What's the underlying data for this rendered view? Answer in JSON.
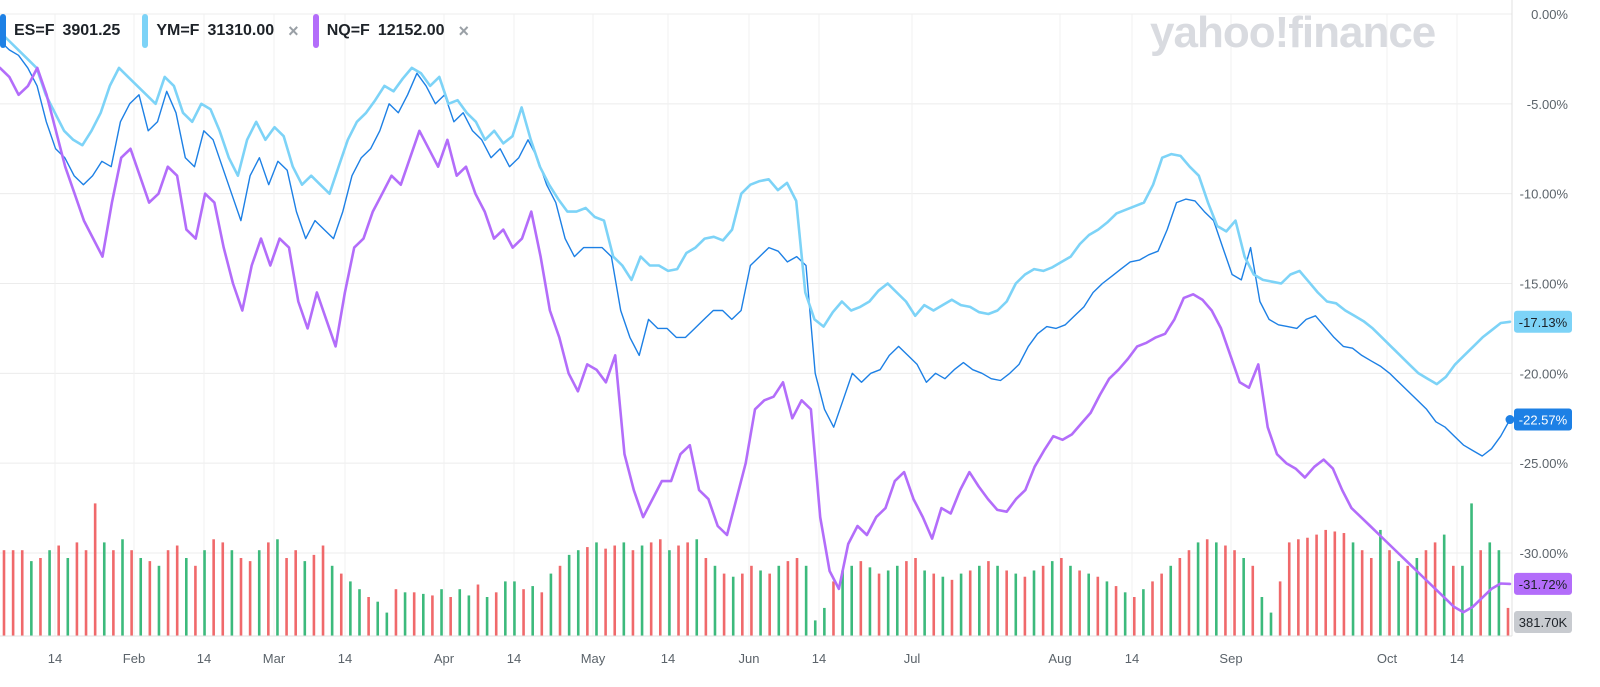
{
  "legend": [
    {
      "symbol": "ES=F",
      "price": "3901.25",
      "color": "#1d80e5",
      "removable": false
    },
    {
      "symbol": "YM=F",
      "price": "31310.00",
      "color": "#7dd3f7",
      "removable": true
    },
    {
      "symbol": "NQ=F",
      "price": "12152.00",
      "color": "#b36dfa",
      "removable": true
    }
  ],
  "remove_icon": "×",
  "watermark": "yahoo!finance",
  "chart_data": {
    "type": "line",
    "x_labels": [
      "14",
      "Feb",
      "14",
      "Mar",
      "14",
      "Apr",
      "14",
      "May",
      "14",
      "Jun",
      "14",
      "Jul",
      "Aug",
      "14",
      "Sep",
      "Oct",
      "14"
    ],
    "y_ticks": [
      "0.00%",
      "-5.00%",
      "-10.00%",
      "-15.00%",
      "-20.00%",
      "-25.00%",
      "-30.00%"
    ],
    "ylim": [
      -35,
      0
    ],
    "grid": true,
    "series": [
      {
        "name": "ES=F",
        "color": "#1d80e5",
        "last_label": "-22.57%",
        "values": [
          -1.5,
          -2,
          -2.3,
          -3,
          -4,
          -6,
          -7.5,
          -8,
          -9,
          -9.5,
          -9,
          -8.2,
          -8.5,
          -6,
          -5,
          -4.5,
          -6.5,
          -6,
          -4.3,
          -5.5,
          -8,
          -8.5,
          -6.5,
          -7,
          -8.5,
          -10,
          -11.5,
          -9,
          -8,
          -9.5,
          -8.2,
          -8.7,
          -11,
          -12.5,
          -11.5,
          -12,
          -12.5,
          -11,
          -9,
          -8,
          -7.5,
          -6.5,
          -5,
          -5.5,
          -4.5,
          -3.3,
          -4,
          -5,
          -4.5,
          -6,
          -5.5,
          -6.5,
          -7,
          -8,
          -7.5,
          -8.5,
          -8,
          -7,
          -8,
          -9.5,
          -10.5,
          -12.5,
          -13.5,
          -13,
          -13,
          -13,
          -13.5,
          -16.5,
          -18,
          -19,
          -17,
          -17.5,
          -17.5,
          -18,
          -18,
          -17.5,
          -17,
          -16.5,
          -16.5,
          -17,
          -16.5,
          -14,
          -13.5,
          -13,
          -13.2,
          -13.8,
          -13.5,
          -14,
          -20,
          -22,
          -23,
          -21.5,
          -20,
          -20.5,
          -20,
          -19.8,
          -19,
          -18.5,
          -19,
          -19.5,
          -20.5,
          -20,
          -20.3,
          -19.8,
          -19.4,
          -19.8,
          -20,
          -20.3,
          -20.4,
          -20,
          -19.5,
          -18.5,
          -17.8,
          -17.4,
          -17.5,
          -17.3,
          -16.8,
          -16.3,
          -15.5,
          -15,
          -14.6,
          -14.2,
          -13.8,
          -13.7,
          -13.4,
          -13.2,
          -12,
          -10.5,
          -10.3,
          -10.4,
          -11,
          -11.5,
          -13,
          -14.5,
          -14.8,
          -13,
          -16,
          -17,
          -17.3,
          -17.4,
          -17.5,
          -17,
          -16.8,
          -17.4,
          -18,
          -18.5,
          -18.6,
          -19,
          -19.3,
          -19.6,
          -20,
          -20.5,
          -21,
          -21.5,
          -22,
          -22.7,
          -23,
          -23.5,
          -24,
          -24.3,
          -24.6,
          -24.2,
          -23.5,
          -22.57
        ]
      },
      {
        "name": "YM=F",
        "color": "#7dd3f7",
        "last_label": "-17.13%",
        "values": [
          -1,
          -1.5,
          -2,
          -2.5,
          -3,
          -4.5,
          -5.5,
          -6.5,
          -7,
          -7.3,
          -6.5,
          -5.5,
          -4,
          -3,
          -3.5,
          -4,
          -4.5,
          -5,
          -3.5,
          -4,
          -5.5,
          -6,
          -5,
          -5.3,
          -6.5,
          -8,
          -9,
          -7,
          -6,
          -7,
          -6.3,
          -6.8,
          -8.5,
          -9.5,
          -9,
          -9.5,
          -10,
          -8.5,
          -7,
          -6,
          -5.5,
          -4.8,
          -4,
          -4.3,
          -3.6,
          -3,
          -3.3,
          -4,
          -3.5,
          -5,
          -4.8,
          -5.5,
          -6,
          -7,
          -6.5,
          -7.2,
          -6.8,
          -5.2,
          -7,
          -8.5,
          -9.5,
          -10.3,
          -11,
          -11,
          -10.8,
          -11.3,
          -11.5,
          -13.5,
          -14,
          -14.8,
          -13.5,
          -14,
          -14,
          -14.3,
          -14.2,
          -13.3,
          -13,
          -12.5,
          -12.4,
          -12.6,
          -12,
          -10,
          -9.5,
          -9.3,
          -9.2,
          -9.8,
          -9.4,
          -10.4,
          -15.5,
          -17,
          -17.4,
          -16.6,
          -16,
          -16.5,
          -16.3,
          -16,
          -15.4,
          -15,
          -15.5,
          -16,
          -16.8,
          -16.2,
          -16.5,
          -16.2,
          -15.9,
          -16.2,
          -16.3,
          -16.6,
          -16.7,
          -16.5,
          -16,
          -15,
          -14.5,
          -14.2,
          -14.3,
          -14.1,
          -13.8,
          -13.5,
          -12.8,
          -12.3,
          -12,
          -11.6,
          -11.1,
          -10.9,
          -10.7,
          -10.5,
          -9.5,
          -8,
          -7.8,
          -7.9,
          -8.5,
          -9,
          -10.5,
          -11.8,
          -12.1,
          -11.5,
          -13.5,
          -14.5,
          -14.8,
          -14.9,
          -15,
          -14.5,
          -14.3,
          -14.9,
          -15.5,
          -16,
          -16.1,
          -16.5,
          -16.8,
          -17.1,
          -17.5,
          -18,
          -18.5,
          -19,
          -19.5,
          -20,
          -20.3,
          -20.6,
          -20.2,
          -19.5,
          -19,
          -18.5,
          -18,
          -17.6,
          -17.2,
          -17.13
        ]
      },
      {
        "name": "NQ=F",
        "color": "#b36dfa",
        "last_label": "-31.72%",
        "values": [
          -3,
          -3.5,
          -4.5,
          -4,
          -3,
          -4.5,
          -6.5,
          -8.5,
          -10,
          -11.5,
          -12.5,
          -13.5,
          -10.5,
          -8,
          -7.5,
          -9,
          -10.5,
          -10,
          -8.5,
          -9,
          -12,
          -12.5,
          -10,
          -10.5,
          -13,
          -15,
          -16.5,
          -14,
          -12.5,
          -14,
          -12.5,
          -13,
          -16,
          -17.5,
          -15.5,
          -17,
          -18.5,
          -15.5,
          -13,
          -12.5,
          -11,
          -10,
          -9,
          -9.5,
          -8,
          -6.5,
          -7.5,
          -8.5,
          -7,
          -9,
          -8.5,
          -10,
          -11,
          -12.5,
          -12,
          -13,
          -12.5,
          -11,
          -13.5,
          -16.5,
          -18,
          -20,
          -21,
          -19.5,
          -19.8,
          -20.5,
          -19,
          -24.5,
          -26.5,
          -28,
          -27,
          -26,
          -26,
          -24.5,
          -24,
          -26.5,
          -27,
          -28.5,
          -29,
          -27,
          -25,
          -22,
          -21.5,
          -21.3,
          -20.5,
          -22.5,
          -21.5,
          -22,
          -28,
          -31,
          -32,
          -29.5,
          -28.5,
          -29,
          -28,
          -27.5,
          -26,
          -25.5,
          -27,
          -28,
          -29.2,
          -27.5,
          -27.8,
          -26.5,
          -25.5,
          -26.3,
          -27,
          -27.6,
          -27.7,
          -27,
          -26.5,
          -25.2,
          -24.3,
          -23.5,
          -23.7,
          -23.4,
          -22.8,
          -22.2,
          -21.2,
          -20.3,
          -19.8,
          -19.2,
          -18.5,
          -18.3,
          -18,
          -17.8,
          -17,
          -15.8,
          -15.6,
          -15.9,
          -16.5,
          -17.5,
          -19,
          -20.5,
          -20.8,
          -19.5,
          -23,
          -24.5,
          -25,
          -25.3,
          -25.8,
          -25.2,
          -24.8,
          -25.3,
          -26.5,
          -27.5,
          -28,
          -28.5,
          -29,
          -29.5,
          -30,
          -30.5,
          -31,
          -31.5,
          -32,
          -32.5,
          -33,
          -33.3,
          -33,
          -32.5,
          -32,
          -31.7,
          -31.72
        ]
      }
    ],
    "volume": {
      "last_label": "381.70K",
      "up_color": "#3cba7c",
      "down_color": "#f0696b",
      "bars": [
        [
          0.55,
          0
        ],
        [
          0.55,
          0
        ],
        [
          0.55,
          0
        ],
        [
          0.48,
          1
        ],
        [
          0.5,
          0
        ],
        [
          0.55,
          1
        ],
        [
          0.58,
          0
        ],
        [
          0.5,
          1
        ],
        [
          0.6,
          0
        ],
        [
          0.55,
          0
        ],
        [
          0.85,
          0
        ],
        [
          0.6,
          1
        ],
        [
          0.55,
          0
        ],
        [
          0.62,
          1
        ],
        [
          0.55,
          0
        ],
        [
          0.5,
          1
        ],
        [
          0.48,
          0
        ],
        [
          0.45,
          1
        ],
        [
          0.55,
          0
        ],
        [
          0.58,
          0
        ],
        [
          0.5,
          1
        ],
        [
          0.45,
          0
        ],
        [
          0.55,
          1
        ],
        [
          0.62,
          0
        ],
        [
          0.6,
          0
        ],
        [
          0.55,
          1
        ],
        [
          0.5,
          0
        ],
        [
          0.48,
          0
        ],
        [
          0.55,
          1
        ],
        [
          0.6,
          0
        ],
        [
          0.62,
          1
        ],
        [
          0.5,
          0
        ],
        [
          0.55,
          0
        ],
        [
          0.48,
          1
        ],
        [
          0.52,
          0
        ],
        [
          0.58,
          0
        ],
        [
          0.45,
          1
        ],
        [
          0.4,
          0
        ],
        [
          0.35,
          1
        ],
        [
          0.3,
          1
        ],
        [
          0.25,
          0
        ],
        [
          0.22,
          1
        ],
        [
          0.15,
          1
        ],
        [
          0.3,
          0
        ],
        [
          0.28,
          1
        ],
        [
          0.28,
          0
        ],
        [
          0.27,
          1
        ],
        [
          0.26,
          0
        ],
        [
          0.3,
          1
        ],
        [
          0.25,
          0
        ],
        [
          0.3,
          1
        ],
        [
          0.26,
          1
        ],
        [
          0.33,
          0
        ],
        [
          0.25,
          1
        ],
        [
          0.28,
          0
        ],
        [
          0.35,
          1
        ],
        [
          0.35,
          1
        ],
        [
          0.3,
          0
        ],
        [
          0.32,
          1
        ],
        [
          0.28,
          0
        ],
        [
          0.4,
          1
        ],
        [
          0.45,
          0
        ],
        [
          0.52,
          1
        ],
        [
          0.55,
          1
        ],
        [
          0.57,
          0
        ],
        [
          0.6,
          1
        ],
        [
          0.56,
          0
        ],
        [
          0.58,
          0
        ],
        [
          0.6,
          1
        ],
        [
          0.55,
          0
        ],
        [
          0.58,
          1
        ],
        [
          0.6,
          0
        ],
        [
          0.62,
          0
        ],
        [
          0.55,
          1
        ],
        [
          0.58,
          0
        ],
        [
          0.6,
          0
        ],
        [
          0.62,
          1
        ],
        [
          0.5,
          0
        ],
        [
          0.45,
          1
        ],
        [
          0.4,
          0
        ],
        [
          0.38,
          1
        ],
        [
          0.4,
          0
        ],
        [
          0.45,
          0
        ],
        [
          0.42,
          1
        ],
        [
          0.4,
          0
        ],
        [
          0.45,
          1
        ],
        [
          0.48,
          0
        ],
        [
          0.5,
          0
        ],
        [
          0.45,
          1
        ],
        [
          0.1,
          1
        ],
        [
          0.18,
          1
        ],
        [
          0.35,
          0
        ],
        [
          0.42,
          1
        ],
        [
          0.45,
          1
        ],
        [
          0.48,
          0
        ],
        [
          0.44,
          1
        ],
        [
          0.4,
          0
        ],
        [
          0.42,
          1
        ],
        [
          0.45,
          1
        ],
        [
          0.48,
          0
        ],
        [
          0.5,
          0
        ],
        [
          0.42,
          1
        ],
        [
          0.4,
          0
        ],
        [
          0.38,
          1
        ],
        [
          0.36,
          0
        ],
        [
          0.4,
          1
        ],
        [
          0.42,
          0
        ],
        [
          0.45,
          1
        ],
        [
          0.48,
          0
        ],
        [
          0.45,
          1
        ],
        [
          0.42,
          0
        ],
        [
          0.4,
          1
        ],
        [
          0.38,
          0
        ],
        [
          0.42,
          1
        ],
        [
          0.45,
          0
        ],
        [
          0.48,
          1
        ],
        [
          0.5,
          0
        ],
        [
          0.45,
          1
        ],
        [
          0.42,
          0
        ],
        [
          0.4,
          1
        ],
        [
          0.38,
          0
        ],
        [
          0.35,
          1
        ],
        [
          0.32,
          0
        ],
        [
          0.28,
          1
        ],
        [
          0.25,
          0
        ],
        [
          0.3,
          1
        ],
        [
          0.35,
          0
        ],
        [
          0.4,
          0
        ],
        [
          0.45,
          1
        ],
        [
          0.5,
          0
        ],
        [
          0.55,
          0
        ],
        [
          0.6,
          1
        ],
        [
          0.62,
          0
        ],
        [
          0.6,
          1
        ],
        [
          0.58,
          0
        ],
        [
          0.55,
          0
        ],
        [
          0.5,
          1
        ],
        [
          0.45,
          0
        ],
        [
          0.25,
          1
        ],
        [
          0.15,
          1
        ],
        [
          0.35,
          0
        ],
        [
          0.6,
          0
        ],
        [
          0.62,
          0
        ],
        [
          0.63,
          0
        ],
        [
          0.65,
          0
        ],
        [
          0.68,
          0
        ],
        [
          0.67,
          0
        ],
        [
          0.66,
          0
        ],
        [
          0.6,
          1
        ],
        [
          0.55,
          0
        ],
        [
          0.5,
          0
        ],
        [
          0.68,
          1
        ],
        [
          0.55,
          0
        ],
        [
          0.48,
          1
        ],
        [
          0.45,
          0
        ],
        [
          0.5,
          1
        ],
        [
          0.55,
          0
        ],
        [
          0.6,
          0
        ],
        [
          0.65,
          1
        ],
        [
          0.45,
          0
        ],
        [
          0.45,
          1
        ],
        [
          0.85,
          1
        ],
        [
          0.55,
          0
        ],
        [
          0.6,
          1
        ],
        [
          0.55,
          1
        ],
        [
          0.18,
          0
        ]
      ]
    }
  }
}
